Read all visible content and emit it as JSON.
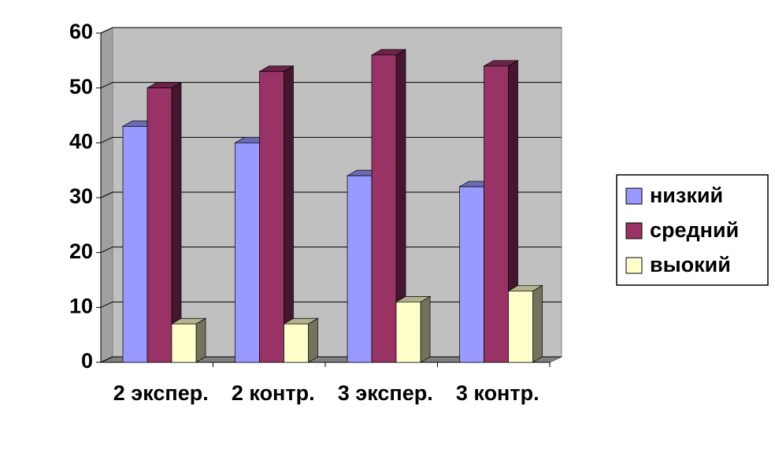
{
  "chart_data": {
    "type": "bar3d",
    "categories": [
      "2 экспер.",
      "2 контр.",
      "3 экспер.",
      "3 контр."
    ],
    "series": [
      {
        "name": "низкий",
        "color": "#9999ff",
        "values": [
          43,
          40,
          34,
          32
        ]
      },
      {
        "name": "средний",
        "color": "#993366",
        "values": [
          50,
          53,
          56,
          54
        ]
      },
      {
        "name": "выокий",
        "color": "#ffffcc",
        "values": [
          7,
          7,
          11,
          13
        ]
      }
    ],
    "ylim": [
      0,
      60
    ],
    "yticks": [
      0,
      10,
      20,
      30,
      40,
      50,
      60
    ],
    "grid": true,
    "legend": "right"
  }
}
